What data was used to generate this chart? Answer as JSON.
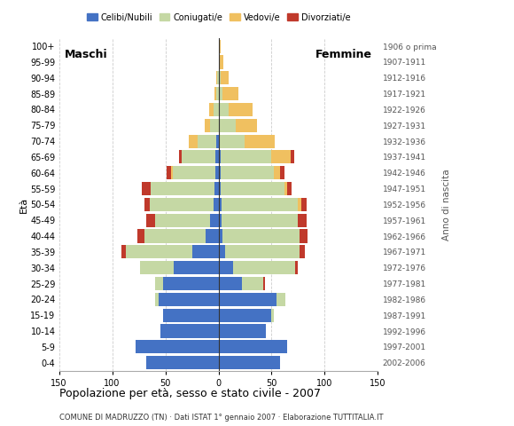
{
  "age_groups": [
    "0-4",
    "5-9",
    "10-14",
    "15-19",
    "20-24",
    "25-29",
    "30-34",
    "35-39",
    "40-44",
    "45-49",
    "50-54",
    "55-59",
    "60-64",
    "65-69",
    "70-74",
    "75-79",
    "80-84",
    "85-89",
    "90-94",
    "95-99",
    "100+"
  ],
  "birth_years": [
    "2002-2006",
    "1997-2001",
    "1992-1996",
    "1987-1991",
    "1982-1986",
    "1977-1981",
    "1972-1976",
    "1967-1971",
    "1962-1966",
    "1957-1961",
    "1952-1956",
    "1947-1951",
    "1942-1946",
    "1937-1941",
    "1932-1936",
    "1927-1931",
    "1922-1926",
    "1917-1921",
    "1912-1916",
    "1907-1911",
    "1906 o prima"
  ],
  "males": {
    "celibe": [
      68,
      78,
      55,
      52,
      56,
      52,
      42,
      25,
      12,
      8,
      5,
      4,
      3,
      3,
      2,
      0,
      0,
      0,
      0,
      0,
      0
    ],
    "coniugato": [
      0,
      0,
      0,
      0,
      4,
      8,
      32,
      62,
      58,
      52,
      60,
      60,
      40,
      32,
      18,
      8,
      5,
      2,
      1,
      0,
      0
    ],
    "vedovo": [
      0,
      0,
      0,
      0,
      0,
      0,
      0,
      0,
      0,
      0,
      0,
      0,
      2,
      0,
      8,
      5,
      4,
      2,
      1,
      0,
      0
    ],
    "divorziato": [
      0,
      0,
      0,
      0,
      0,
      0,
      0,
      4,
      6,
      8,
      5,
      8,
      4,
      2,
      0,
      0,
      0,
      0,
      0,
      0,
      0
    ]
  },
  "females": {
    "nubile": [
      58,
      65,
      45,
      50,
      55,
      22,
      14,
      6,
      4,
      3,
      3,
      2,
      2,
      2,
      0,
      0,
      0,
      0,
      0,
      0,
      0
    ],
    "coniugata": [
      0,
      0,
      0,
      2,
      8,
      20,
      58,
      70,
      72,
      72,
      72,
      60,
      50,
      48,
      25,
      16,
      10,
      4,
      2,
      0,
      0
    ],
    "vedova": [
      0,
      0,
      0,
      0,
      0,
      0,
      0,
      0,
      0,
      0,
      3,
      3,
      6,
      18,
      28,
      20,
      22,
      15,
      8,
      5,
      2
    ],
    "divorziata": [
      0,
      0,
      0,
      0,
      0,
      2,
      3,
      5,
      8,
      8,
      5,
      4,
      4,
      3,
      0,
      0,
      0,
      0,
      0,
      0,
      0
    ]
  },
  "colors": {
    "celibe": "#4472c4",
    "coniugato": "#c5d8a4",
    "vedovo": "#f0c060",
    "divorziato": "#c0392b"
  },
  "xlim": 150,
  "title": "Popolazione per età, sesso e stato civile - 2007",
  "subtitle": "COMUNE DI MADRUZZO (TN) · Dati ISTAT 1° gennaio 2007 · Elaborazione TUTTITALIA.IT",
  "ylabel_left": "Età",
  "ylabel_right": "Anno di nascita",
  "label_maschi": "Maschi",
  "label_femmine": "Femmine",
  "legend_labels": [
    "Celibi/Nubili",
    "Coniugati/e",
    "Vedovi/e",
    "Divorziati/e"
  ]
}
